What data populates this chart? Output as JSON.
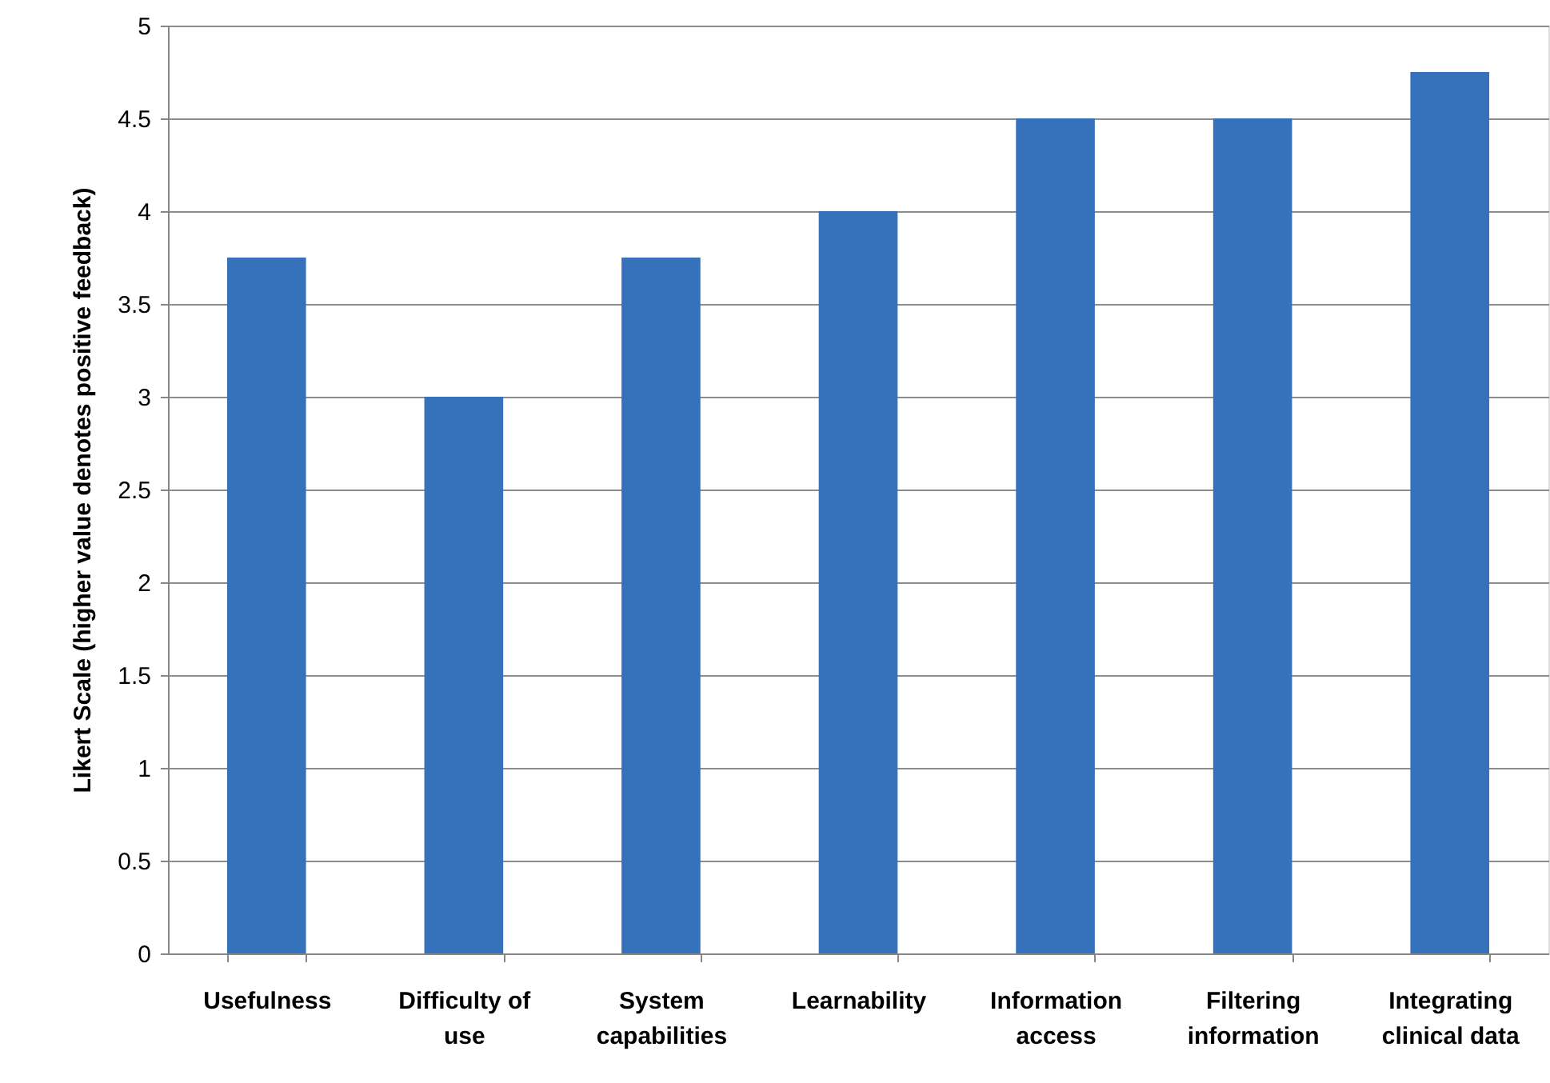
{
  "chart_data": {
    "type": "bar",
    "ylabel": "Likert Scale (higher value denotes positive feedback)",
    "categories": [
      "Usefulness",
      "Difficulty of use",
      "System capabilities",
      "Learnability",
      "Information access",
      "Filtering information",
      "Integrating clinical data"
    ],
    "values": [
      3.75,
      3,
      3.75,
      4,
      4.5,
      4.5,
      4.75
    ],
    "color": "#3672bb",
    "ylim": [
      0,
      5
    ],
    "yticks": [
      0,
      0.5,
      1,
      1.5,
      2,
      2.5,
      3,
      3.5,
      4,
      4.5,
      5
    ],
    "grid": "y"
  }
}
